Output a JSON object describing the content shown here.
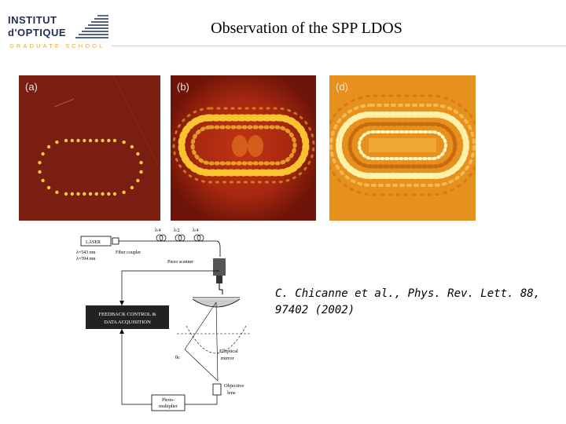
{
  "header": {
    "logo_line1": "INSTITUT",
    "logo_line2": "d'OPTIQUE",
    "logo_line3": "GRADUATE SCHOOL",
    "accent_blue": "#1f2f5a",
    "accent_orange": "#e3a43a"
  },
  "slide": {
    "title": "Observation of the SPP LDOS"
  },
  "panels": [
    {
      "label": "(a)"
    },
    {
      "label": "(b)"
    },
    {
      "label": "(d)"
    }
  ],
  "schematic": {
    "laser": "LASER",
    "lambda1": "λ=543 nm",
    "lambda2": "λ=594 nm",
    "waveplate1": "λ/4",
    "waveplate2": "λ/2",
    "waveplate3": "λ/4",
    "fiber_coupler": "Fiber coupler",
    "piezo": "Piezo scanner",
    "feedback_line1": "FEEDBACK CONTROL &",
    "feedback_line2": "DATA ACQUISITION",
    "mirror_line1": "Elliptical",
    "mirror_line2": "mirror",
    "theta": "θc",
    "objective_line1": "Objective",
    "objective_line2": "lens",
    "pm_line1": "Photo-",
    "pm_line2": "multiplier"
  },
  "citation": {
    "line1": "C. Chicanne et al., Phys. Rev. Lett. 88,",
    "line2": "97402 (2002)"
  }
}
